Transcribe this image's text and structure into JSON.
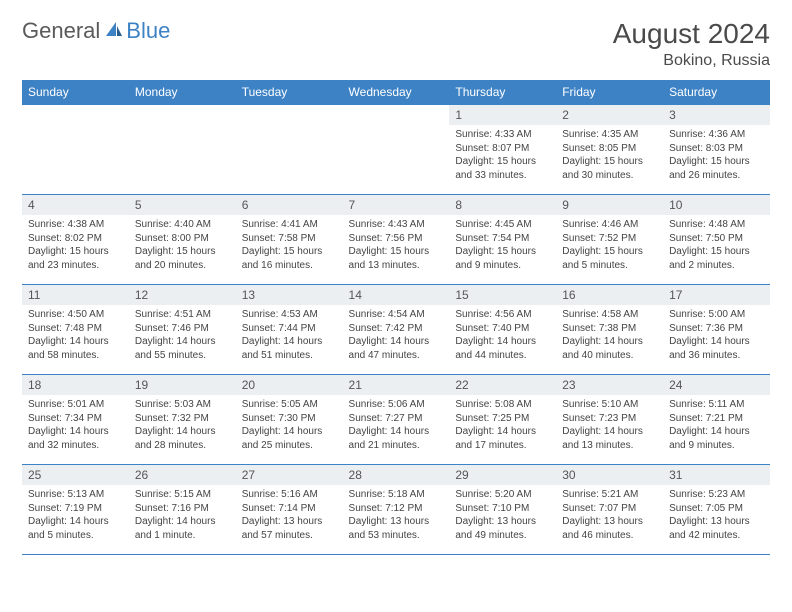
{
  "logo": {
    "part1": "General",
    "part2": "Blue"
  },
  "title": "August 2024",
  "location": "Bokino, Russia",
  "colors": {
    "header_bg": "#3d82c4",
    "header_text": "#ffffff",
    "daynum_bg": "#eceff1",
    "border": "#3d82c4",
    "logo_gray": "#5a5a5a",
    "logo_blue": "#3d82c4"
  },
  "day_headers": [
    "Sunday",
    "Monday",
    "Tuesday",
    "Wednesday",
    "Thursday",
    "Friday",
    "Saturday"
  ],
  "weeks": [
    [
      null,
      null,
      null,
      null,
      {
        "n": "1",
        "sr": "4:33 AM",
        "ss": "8:07 PM",
        "dl": "15 hours and 33 minutes."
      },
      {
        "n": "2",
        "sr": "4:35 AM",
        "ss": "8:05 PM",
        "dl": "15 hours and 30 minutes."
      },
      {
        "n": "3",
        "sr": "4:36 AM",
        "ss": "8:03 PM",
        "dl": "15 hours and 26 minutes."
      }
    ],
    [
      {
        "n": "4",
        "sr": "4:38 AM",
        "ss": "8:02 PM",
        "dl": "15 hours and 23 minutes."
      },
      {
        "n": "5",
        "sr": "4:40 AM",
        "ss": "8:00 PM",
        "dl": "15 hours and 20 minutes."
      },
      {
        "n": "6",
        "sr": "4:41 AM",
        "ss": "7:58 PM",
        "dl": "15 hours and 16 minutes."
      },
      {
        "n": "7",
        "sr": "4:43 AM",
        "ss": "7:56 PM",
        "dl": "15 hours and 13 minutes."
      },
      {
        "n": "8",
        "sr": "4:45 AM",
        "ss": "7:54 PM",
        "dl": "15 hours and 9 minutes."
      },
      {
        "n": "9",
        "sr": "4:46 AM",
        "ss": "7:52 PM",
        "dl": "15 hours and 5 minutes."
      },
      {
        "n": "10",
        "sr": "4:48 AM",
        "ss": "7:50 PM",
        "dl": "15 hours and 2 minutes."
      }
    ],
    [
      {
        "n": "11",
        "sr": "4:50 AM",
        "ss": "7:48 PM",
        "dl": "14 hours and 58 minutes."
      },
      {
        "n": "12",
        "sr": "4:51 AM",
        "ss": "7:46 PM",
        "dl": "14 hours and 55 minutes."
      },
      {
        "n": "13",
        "sr": "4:53 AM",
        "ss": "7:44 PM",
        "dl": "14 hours and 51 minutes."
      },
      {
        "n": "14",
        "sr": "4:54 AM",
        "ss": "7:42 PM",
        "dl": "14 hours and 47 minutes."
      },
      {
        "n": "15",
        "sr": "4:56 AM",
        "ss": "7:40 PM",
        "dl": "14 hours and 44 minutes."
      },
      {
        "n": "16",
        "sr": "4:58 AM",
        "ss": "7:38 PM",
        "dl": "14 hours and 40 minutes."
      },
      {
        "n": "17",
        "sr": "5:00 AM",
        "ss": "7:36 PM",
        "dl": "14 hours and 36 minutes."
      }
    ],
    [
      {
        "n": "18",
        "sr": "5:01 AM",
        "ss": "7:34 PM",
        "dl": "14 hours and 32 minutes."
      },
      {
        "n": "19",
        "sr": "5:03 AM",
        "ss": "7:32 PM",
        "dl": "14 hours and 28 minutes."
      },
      {
        "n": "20",
        "sr": "5:05 AM",
        "ss": "7:30 PM",
        "dl": "14 hours and 25 minutes."
      },
      {
        "n": "21",
        "sr": "5:06 AM",
        "ss": "7:27 PM",
        "dl": "14 hours and 21 minutes."
      },
      {
        "n": "22",
        "sr": "5:08 AM",
        "ss": "7:25 PM",
        "dl": "14 hours and 17 minutes."
      },
      {
        "n": "23",
        "sr": "5:10 AM",
        "ss": "7:23 PM",
        "dl": "14 hours and 13 minutes."
      },
      {
        "n": "24",
        "sr": "5:11 AM",
        "ss": "7:21 PM",
        "dl": "14 hours and 9 minutes."
      }
    ],
    [
      {
        "n": "25",
        "sr": "5:13 AM",
        "ss": "7:19 PM",
        "dl": "14 hours and 5 minutes."
      },
      {
        "n": "26",
        "sr": "5:15 AM",
        "ss": "7:16 PM",
        "dl": "14 hours and 1 minute."
      },
      {
        "n": "27",
        "sr": "5:16 AM",
        "ss": "7:14 PM",
        "dl": "13 hours and 57 minutes."
      },
      {
        "n": "28",
        "sr": "5:18 AM",
        "ss": "7:12 PM",
        "dl": "13 hours and 53 minutes."
      },
      {
        "n": "29",
        "sr": "5:20 AM",
        "ss": "7:10 PM",
        "dl": "13 hours and 49 minutes."
      },
      {
        "n": "30",
        "sr": "5:21 AM",
        "ss": "7:07 PM",
        "dl": "13 hours and 46 minutes."
      },
      {
        "n": "31",
        "sr": "5:23 AM",
        "ss": "7:05 PM",
        "dl": "13 hours and 42 minutes."
      }
    ]
  ],
  "labels": {
    "sunrise": "Sunrise:",
    "sunset": "Sunset:",
    "daylight": "Daylight:"
  }
}
